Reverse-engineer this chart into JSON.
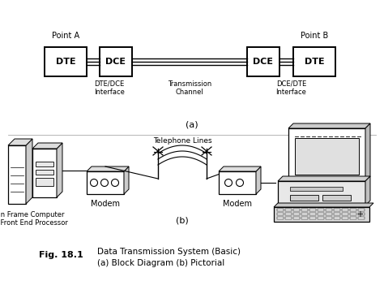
{
  "title_text": "Fig. 18.1",
  "caption1": "Data Transmission System (Basic)",
  "caption2": "(a) Block Diagram (b) Pictorial",
  "point_a": "Point A",
  "point_b": "Point B",
  "dte_left": "DTE",
  "dce_left": "DCE",
  "dce_right": "DCE",
  "dte_right": "DTE",
  "label_dte_dce": "DTE/DCE\nInterface",
  "label_trans": "Transmission\nChannel",
  "label_dce_dte": "DCE/DTE\nInterface",
  "label_a": "(a)",
  "label_b": "(b)",
  "telephone_lines": "Telephone Lines",
  "modem_left": "Modem",
  "modem_right": "Modem",
  "mainframe": "Main Frame Computer\nand Front End Processor"
}
